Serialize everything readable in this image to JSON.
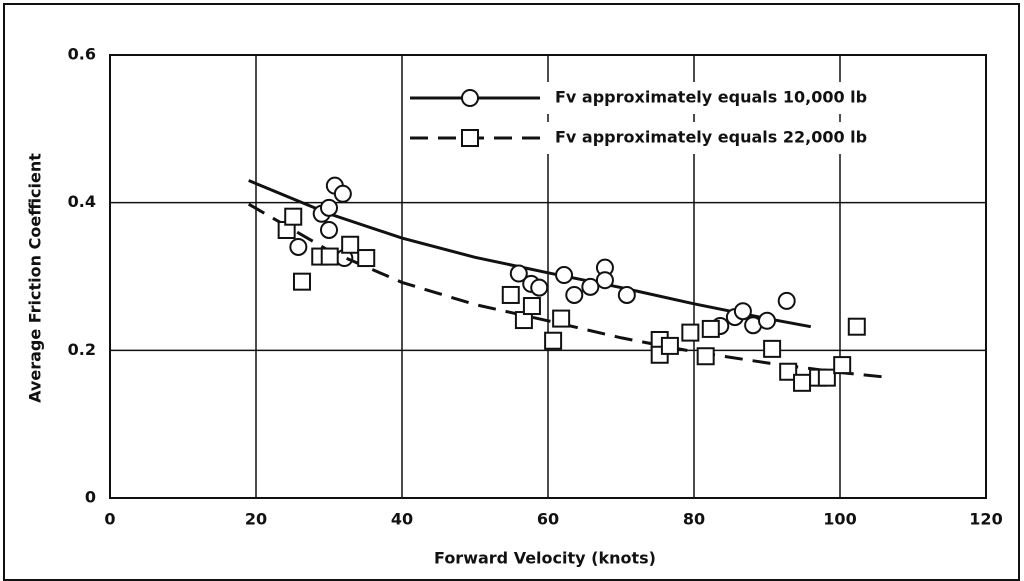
{
  "chart_data": {
    "type": "scatter",
    "xlabel": "Forward Velocity (knots)",
    "ylabel": "Average Friction Coefficient",
    "xlim": [
      0,
      120
    ],
    "xticks": [
      0,
      20,
      40,
      60,
      80,
      100,
      120
    ],
    "ylim": [
      0,
      0.6
    ],
    "yticks": [
      0,
      0.2,
      0.4,
      0.6
    ],
    "grid": true,
    "legend": "upper right",
    "series": [
      {
        "name": "Fv approximately equals 10,000 lb",
        "color": "#111111",
        "marker": "circle",
        "line_style": "solid",
        "x": [
          25.8,
          29.0,
          30.0,
          30.0,
          30.8,
          31.9,
          32.1,
          56.0,
          57.7,
          58.8,
          62.2,
          63.6,
          65.8,
          67.8,
          67.8,
          70.8,
          83.6,
          85.6,
          86.7,
          88.1,
          90.0,
          92.7
        ],
        "values": [
          0.34,
          0.385,
          0.363,
          0.393,
          0.423,
          0.412,
          0.325,
          0.304,
          0.29,
          0.285,
          0.302,
          0.275,
          0.286,
          0.312,
          0.295,
          0.275,
          0.233,
          0.245,
          0.253,
          0.234,
          0.24,
          0.267
        ],
        "fit_x": [
          19,
          30,
          40,
          50,
          60,
          70,
          80,
          90,
          96
        ],
        "fit_values": [
          0.43,
          0.385,
          0.352,
          0.326,
          0.305,
          0.285,
          0.263,
          0.243,
          0.232
        ]
      },
      {
        "name": "Fv approximately equals 22,000 lb",
        "color": "#111111",
        "marker": "square",
        "line_style": "dashed",
        "x": [
          24.2,
          25.1,
          26.3,
          28.8,
          30.1,
          32.9,
          35.1,
          54.9,
          56.7,
          57.8,
          60.7,
          61.8,
          75.3,
          75.3,
          76.7,
          79.5,
          81.6,
          82.3,
          90.7,
          92.9,
          94.8,
          97.0,
          98.2,
          100.3,
          102.3
        ],
        "values": [
          0.363,
          0.381,
          0.293,
          0.327,
          0.327,
          0.343,
          0.325,
          0.275,
          0.241,
          0.26,
          0.213,
          0.243,
          0.214,
          0.194,
          0.206,
          0.224,
          0.192,
          0.229,
          0.202,
          0.171,
          0.156,
          0.163,
          0.163,
          0.18,
          0.232
        ],
        "fit_x": [
          19,
          30,
          40,
          50,
          60,
          70,
          80,
          90,
          100,
          107
        ],
        "fit_values": [
          0.398,
          0.335,
          0.292,
          0.262,
          0.24,
          0.217,
          0.198,
          0.183,
          0.17,
          0.163
        ]
      }
    ]
  }
}
